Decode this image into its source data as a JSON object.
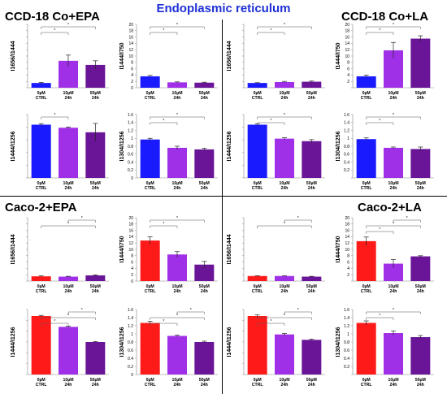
{
  "header": {
    "title": "Endoplasmic reticulum",
    "groups": [
      "CCD-18 Co+EPA",
      "CCD-18 Co+LA",
      "Caco-2+EPA",
      "Caco-2+LA"
    ]
  },
  "colors": {
    "ccd_control": "#1a1aff",
    "caco_control": "#ff1a1a",
    "treat_10": "#a030e8",
    "treat_50": "#6a1597",
    "bracket": "#555555"
  },
  "chart_data": [
    {
      "type": "bar",
      "group": "CCD-18 Co+EPA",
      "ylabel": "I1656/I1444",
      "ylim": [
        0,
        20
      ],
      "ticks": [
        0,
        2,
        4,
        6,
        8,
        10,
        12,
        14,
        16,
        18,
        20
      ],
      "yticklabels": [
        "",
        "",
        "",
        "",
        "",
        "",
        "",
        "",
        "",
        "",
        ""
      ],
      "categories": [
        "0µM CTRL",
        "10µM 24h",
        "50µM 24h"
      ],
      "values": [
        1.5,
        8.5,
        7.2
      ],
      "errors": [
        0.2,
        1.8,
        1.3
      ],
      "sig": [
        [
          0,
          1
        ],
        [
          0,
          2
        ]
      ]
    },
    {
      "type": "bar",
      "group": "CCD-18 Co+EPA",
      "ylabel": "I1444/I750",
      "ylim": [
        0,
        20
      ],
      "ticks": [
        0,
        2,
        4,
        6,
        8,
        10,
        12,
        14,
        16,
        18,
        20
      ],
      "yticklabels": [
        "0",
        "2",
        "4",
        "6",
        "8",
        "10",
        "12",
        "14",
        "16",
        "18",
        "20"
      ],
      "categories": [
        "0µM CTRL",
        "10µM 24h",
        "50µM 24h"
      ],
      "values": [
        3.6,
        1.7,
        1.6
      ],
      "errors": [
        0.3,
        0.15,
        0.15
      ],
      "sig": [
        [
          0,
          1
        ],
        [
          0,
          2
        ]
      ]
    },
    {
      "type": "bar",
      "group": "CCD-18 Co+LA",
      "ylabel": "I1656/I1444",
      "ylim": [
        0,
        20
      ],
      "ticks": [
        0,
        2,
        4,
        6,
        8,
        10,
        12,
        14,
        16,
        18,
        20
      ],
      "yticklabels": [
        "",
        "",
        "",
        "",
        "",
        "",
        "",
        "",
        "",
        "",
        ""
      ],
      "categories": [
        "0µM CTRL",
        "10µM 24h",
        "50µM 24h"
      ],
      "values": [
        1.5,
        1.8,
        1.9
      ],
      "errors": [
        0.1,
        0.2,
        0.2
      ],
      "sig": [
        [
          0,
          1
        ],
        [
          0,
          2
        ]
      ]
    },
    {
      "type": "bar",
      "group": "CCD-18 Co+LA",
      "ylabel": "I1444/I750",
      "ylim": [
        0,
        20
      ],
      "ticks": [
        0,
        2,
        4,
        6,
        8,
        10,
        12,
        14,
        16,
        18,
        20
      ],
      "yticklabels": [
        "",
        "2",
        "4",
        "6",
        "8",
        "10",
        "12",
        "14",
        "16",
        "18",
        "20"
      ],
      "categories": [
        "0µM CTRL",
        "10µM 24h",
        "50µM 24h"
      ],
      "values": [
        3.6,
        11.8,
        15.5
      ],
      "errors": [
        0.4,
        2.5,
        0.9
      ],
      "sig": [
        [
          0,
          1
        ],
        [
          0,
          2
        ]
      ]
    },
    {
      "type": "bar",
      "group": "CCD-18 Co+EPA",
      "ylabel": "I1444/I1256",
      "ylim": [
        0,
        2.5
      ],
      "ticks": [
        0,
        0.5,
        1,
        1.5,
        2,
        2.5
      ],
      "yticklabels": [
        "",
        "",
        "",
        "",
        "",
        ""
      ],
      "categories": [
        "0µM CTRL",
        "10µM 24h",
        "50µM 24h"
      ],
      "values": [
        2.1,
        1.98,
        1.8
      ],
      "errors": [
        0.04,
        0.03,
        0.35
      ],
      "sig": [
        [
          0,
          1
        ]
      ]
    },
    {
      "type": "bar",
      "group": "CCD-18 Co+EPA",
      "ylabel": "I1304/I1256",
      "ylim": [
        0,
        1.6
      ],
      "ticks": [
        0,
        0.2,
        0.4,
        0.6,
        0.8,
        1,
        1.2,
        1.4,
        1.6
      ],
      "yticklabels": [
        "0",
        "0.2",
        "0.4",
        "0.6",
        "0.8",
        "1",
        "1.2",
        "1.4",
        "1.6"
      ],
      "categories": [
        "0µM CTRL",
        "10µM 24h",
        "50µM 24h"
      ],
      "values": [
        0.97,
        0.76,
        0.72
      ],
      "errors": [
        0.03,
        0.04,
        0.03
      ],
      "sig": [
        [
          0,
          1
        ],
        [
          0,
          2
        ]
      ]
    },
    {
      "type": "bar",
      "group": "CCD-18 Co+LA",
      "ylabel": "I1444/I1256",
      "ylim": [
        0,
        2.5
      ],
      "ticks": [
        0,
        0.5,
        1,
        1.5,
        2,
        2.5
      ],
      "yticklabels": [
        "",
        "",
        "",
        "",
        "",
        ""
      ],
      "categories": [
        "0µM CTRL",
        "10µM 24h",
        "50µM 24h"
      ],
      "values": [
        2.1,
        1.55,
        1.45
      ],
      "errors": [
        0.03,
        0.04,
        0.06
      ],
      "sig": [
        [
          0,
          1
        ],
        [
          0,
          2
        ]
      ]
    },
    {
      "type": "bar",
      "group": "CCD-18 Co+LA",
      "ylabel": "I1304/I1256",
      "ylim": [
        0,
        1.6
      ],
      "ticks": [
        0,
        0.2,
        0.4,
        0.6,
        0.8,
        1,
        1.2,
        1.4,
        1.6
      ],
      "yticklabels": [
        "",
        "0.2",
        "0.4",
        "0.6",
        "0.8",
        "1",
        "1.2",
        "1.4",
        "1.6"
      ],
      "categories": [
        "0µM CTRL",
        "10µM 24h",
        "50µM 24h"
      ],
      "values": [
        0.98,
        0.76,
        0.73
      ],
      "errors": [
        0.03,
        0.02,
        0.05
      ],
      "sig": [
        [
          0,
          1
        ],
        [
          0,
          2
        ]
      ]
    },
    {
      "type": "bar",
      "group": "Caco-2+EPA",
      "ylabel": "I1656/I1444",
      "ylim": [
        0,
        20
      ],
      "ticks": [
        0,
        2,
        4,
        6,
        8,
        10,
        12,
        14,
        16,
        18,
        20
      ],
      "yticklabels": [
        "",
        "",
        "",
        "",
        "",
        "",
        "",
        "",
        "",
        "",
        ""
      ],
      "categories": [
        "0µM CTRL",
        "10µM 24h",
        "50µM 24h"
      ],
      "values": [
        1.5,
        1.4,
        1.8
      ],
      "errors": [
        0.15,
        0.1,
        0.15
      ],
      "sig": [
        [
          0,
          2
        ],
        [
          1,
          2
        ]
      ]
    },
    {
      "type": "bar",
      "group": "Caco-2+EPA",
      "ylabel": "I1444/I750",
      "ylim": [
        0,
        20
      ],
      "ticks": [
        0,
        2,
        4,
        6,
        8,
        10,
        12,
        14,
        16,
        18,
        20
      ],
      "yticklabels": [
        "0",
        "2",
        "4",
        "6",
        "8",
        "10",
        "12",
        "14",
        "16",
        "18",
        "20"
      ],
      "categories": [
        "0µM CTRL",
        "10µM 24h",
        "50µM 24h"
      ],
      "values": [
        12.8,
        8.4,
        5.2
      ],
      "errors": [
        1.2,
        0.9,
        1.0
      ],
      "sig": [
        [
          0,
          1
        ],
        [
          0,
          2
        ]
      ]
    },
    {
      "type": "bar",
      "group": "Caco-2+LA",
      "ylabel": "I1656/I1444",
      "ylim": [
        0,
        20
      ],
      "ticks": [
        0,
        2,
        4,
        6,
        8,
        10,
        12,
        14,
        16,
        18,
        20
      ],
      "yticklabels": [
        "",
        "",
        "",
        "",
        "",
        "",
        "",
        "",
        "",
        "",
        ""
      ],
      "categories": [
        "0µM CTRL",
        "10µM 24h",
        "50µM 24h"
      ],
      "values": [
        1.6,
        1.6,
        1.4
      ],
      "errors": [
        0.1,
        0.1,
        0.1
      ],
      "sig": [
        [
          0,
          2
        ],
        [
          1,
          2
        ]
      ]
    },
    {
      "type": "bar",
      "group": "Caco-2+LA",
      "ylabel": "I1444/I750",
      "ylim": [
        0,
        20
      ],
      "ticks": [
        0,
        2,
        4,
        6,
        8,
        10,
        12,
        14,
        16,
        18,
        20
      ],
      "yticklabels": [
        "",
        "2",
        "4",
        "6",
        "8",
        "10",
        "12",
        "14",
        "16",
        "18",
        "20"
      ],
      "categories": [
        "0µM CTRL",
        "10µM 24h",
        "50µM 24h"
      ],
      "values": [
        12.6,
        5.5,
        7.8
      ],
      "errors": [
        1.3,
        1.3,
        0.2
      ],
      "sig": [
        [
          0,
          1
        ],
        [
          0,
          2
        ],
        [
          1,
          2
        ]
      ]
    },
    {
      "type": "bar",
      "group": "Caco-2+EPA",
      "ylabel": "I1444/I1256",
      "ylim": [
        0,
        3
      ],
      "ticks": [
        0,
        0.5,
        1,
        1.5,
        2,
        2.5,
        3
      ],
      "yticklabels": [
        "",
        "",
        "",
        "",
        "",
        "",
        ""
      ],
      "categories": [
        "0µM CTRL",
        "10µM 24h",
        "50µM 24h"
      ],
      "values": [
        2.7,
        2.2,
        1.5
      ],
      "errors": [
        0.03,
        0.03,
        0.02
      ],
      "sig": [
        [
          0,
          1
        ],
        [
          0,
          2
        ],
        [
          1,
          2
        ]
      ]
    },
    {
      "type": "bar",
      "group": "Caco-2+EPA",
      "ylabel": "I1304/I1256",
      "ylim": [
        0,
        1.6
      ],
      "ticks": [
        0,
        0.2,
        0.4,
        0.6,
        0.8,
        1,
        1.2,
        1.4,
        1.6
      ],
      "yticklabels": [
        "0",
        "0.2",
        "0.4",
        "0.6",
        "0.8",
        "1",
        "1.2",
        "1.4",
        "1.6"
      ],
      "categories": [
        "0µM CTRL",
        "10µM 24h",
        "50µM 24h"
      ],
      "values": [
        1.27,
        0.95,
        0.8
      ],
      "errors": [
        0.04,
        0.02,
        0.02
      ],
      "sig": [
        [
          0,
          1
        ],
        [
          0,
          2
        ],
        [
          1,
          2
        ]
      ]
    },
    {
      "type": "bar",
      "group": "Caco-2+LA",
      "ylabel": "I1444/I1256",
      "ylim": [
        0,
        3
      ],
      "ticks": [
        0,
        0.5,
        1,
        1.5,
        2,
        2.5,
        3
      ],
      "yticklabels": [
        "",
        "",
        "",
        "",
        "",
        "",
        ""
      ],
      "categories": [
        "0µM CTRL",
        "10µM 24h",
        "50µM 24h"
      ],
      "values": [
        2.7,
        1.85,
        1.6
      ],
      "errors": [
        0.05,
        0.05,
        0.03
      ],
      "sig": [
        [
          0,
          1
        ],
        [
          0,
          2
        ],
        [
          1,
          2
        ]
      ]
    },
    {
      "type": "bar",
      "group": "Caco-2+LA",
      "ylabel": "I1304/I1256",
      "ylim": [
        0,
        1.6
      ],
      "ticks": [
        0,
        0.2,
        0.4,
        0.6,
        0.8,
        1,
        1.2,
        1.4,
        1.6
      ],
      "yticklabels": [
        "",
        "0.2",
        "0.4",
        "0.6",
        "0.8",
        "1",
        "1.2",
        "1.4",
        "1.6"
      ],
      "categories": [
        "0µM CTRL",
        "10µM 24h",
        "50µM 24h"
      ],
      "values": [
        1.27,
        1.02,
        0.92
      ],
      "errors": [
        0.05,
        0.05,
        0.04
      ],
      "sig": [
        [
          0,
          1
        ],
        [
          0,
          2
        ]
      ]
    }
  ]
}
